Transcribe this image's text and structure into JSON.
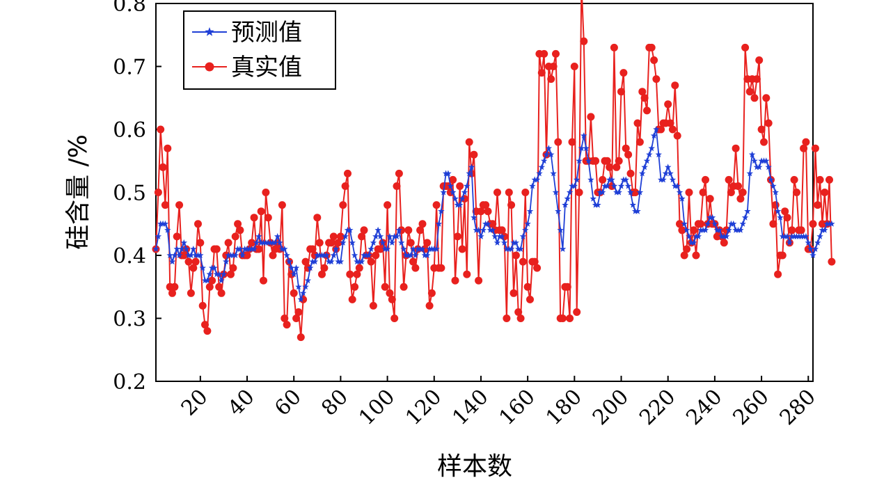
{
  "chart_data": {
    "type": "line",
    "xlabel": "样本数",
    "ylabel": "硅含量 /%",
    "xlim": [
      1,
      282
    ],
    "ylim": [
      0.2,
      0.8
    ],
    "x_ticks": [
      20,
      40,
      60,
      80,
      100,
      120,
      140,
      160,
      180,
      200,
      220,
      240,
      260,
      280
    ],
    "y_ticks": [
      0.2,
      0.3,
      0.4,
      0.5,
      0.6,
      0.7,
      0.8
    ],
    "x_tick_labels": [
      "20",
      "40",
      "60",
      "80",
      "100",
      "120",
      "140",
      "160",
      "180",
      "200",
      "220",
      "240",
      "260",
      "280"
    ],
    "y_tick_labels": [
      "0.2",
      "0.3",
      "0.4",
      "0.5",
      "0.6",
      "0.7",
      "0.8"
    ],
    "grid": false,
    "legend_position": "top-left",
    "series": [
      {
        "name": "预测值",
        "color": "#1f3fd6",
        "marker": "star",
        "values": [
          0.41,
          0.43,
          0.45,
          0.45,
          0.45,
          0.44,
          0.4,
          0.39,
          0.4,
          0.41,
          0.4,
          0.41,
          0.42,
          0.41,
          0.4,
          0.4,
          0.41,
          0.4,
          0.4,
          0.4,
          0.38,
          0.36,
          0.36,
          0.37,
          0.38,
          0.38,
          0.37,
          0.37,
          0.36,
          0.37,
          0.39,
          0.4,
          0.4,
          0.4,
          0.4,
          0.41,
          0.41,
          0.4,
          0.41,
          0.41,
          0.41,
          0.41,
          0.41,
          0.42,
          0.43,
          0.42,
          0.42,
          0.42,
          0.42,
          0.42,
          0.42,
          0.42,
          0.43,
          0.42,
          0.41,
          0.41,
          0.4,
          0.39,
          0.38,
          0.37,
          0.38,
          0.35,
          0.33,
          0.34,
          0.35,
          0.36,
          0.38,
          0.39,
          0.39,
          0.4,
          0.4,
          0.4,
          0.4,
          0.4,
          0.39,
          0.39,
          0.4,
          0.41,
          0.39,
          0.39,
          0.42,
          0.43,
          0.44,
          0.44,
          0.42,
          0.4,
          0.39,
          0.39,
          0.39,
          0.4,
          0.4,
          0.4,
          0.41,
          0.42,
          0.43,
          0.44,
          0.43,
          0.42,
          0.41,
          0.41,
          0.43,
          0.42,
          0.43,
          0.43,
          0.44,
          0.42,
          0.41,
          0.4,
          0.4,
          0.4,
          0.41,
          0.4,
          0.41,
          0.41,
          0.41,
          0.4,
          0.4,
          0.41,
          0.41,
          0.41,
          0.41,
          0.45,
          0.47,
          0.5,
          0.53,
          0.53,
          0.51,
          0.5,
          0.49,
          0.48,
          0.48,
          0.49,
          0.5,
          0.51,
          0.53,
          0.54,
          0.46,
          0.44,
          0.44,
          0.43,
          0.44,
          0.45,
          0.45,
          0.44,
          0.44,
          0.43,
          0.42,
          0.43,
          0.43,
          0.42,
          0.41,
          0.41,
          0.41,
          0.42,
          0.42,
          0.41,
          0.41,
          0.43,
          0.44,
          0.45,
          0.47,
          0.51,
          0.52,
          0.52,
          0.53,
          0.54,
          0.55,
          0.56,
          0.57,
          0.56,
          0.53,
          0.5,
          0.47,
          0.44,
          0.41,
          0.48,
          0.49,
          0.5,
          0.51,
          0.51,
          0.52,
          0.55,
          0.57,
          0.59,
          0.57,
          0.55,
          0.52,
          0.49,
          0.48,
          0.48,
          0.5,
          0.5,
          0.51,
          0.51,
          0.52,
          0.52,
          0.51,
          0.5,
          0.5,
          0.51,
          0.52,
          0.52,
          0.51,
          0.5,
          0.48,
          0.47,
          0.47,
          0.5,
          0.53,
          0.54,
          0.55,
          0.56,
          0.57,
          0.59,
          0.6,
          0.56,
          0.52,
          0.52,
          0.53,
          0.54,
          0.53,
          0.52,
          0.51,
          0.51,
          0.5,
          0.49,
          0.45,
          0.44,
          0.43,
          0.42,
          0.42,
          0.43,
          0.43,
          0.44,
          0.44,
          0.44,
          0.45,
          0.46,
          0.46,
          0.45,
          0.44,
          0.44,
          0.43,
          0.43,
          0.43,
          0.44,
          0.45,
          0.45,
          0.44,
          0.44,
          0.44,
          0.45,
          0.46,
          0.47,
          0.53,
          0.56,
          0.55,
          0.54,
          0.54,
          0.55,
          0.55,
          0.55,
          0.54,
          0.52,
          0.51,
          0.5,
          0.47,
          0.46,
          0.43,
          0.43,
          0.43,
          0.42,
          0.43,
          0.43,
          0.43,
          0.43,
          0.43,
          0.43,
          0.43,
          0.42,
          0.41,
          0.4,
          0.41,
          0.42,
          0.43,
          0.44,
          0.44,
          0.45,
          0.45,
          0.45
        ]
      },
      {
        "name": "真实值",
        "color": "#e8211e",
        "marker": "circle",
        "values": [
          0.41,
          0.5,
          0.6,
          0.54,
          0.48,
          0.57,
          0.35,
          0.34,
          0.35,
          0.43,
          0.48,
          0.4,
          0.4,
          0.41,
          0.39,
          0.34,
          0.38,
          0.39,
          0.45,
          0.42,
          0.32,
          0.29,
          0.28,
          0.35,
          0.36,
          0.41,
          0.41,
          0.35,
          0.34,
          0.37,
          0.4,
          0.42,
          0.37,
          0.38,
          0.43,
          0.45,
          0.44,
          0.4,
          0.4,
          0.4,
          0.41,
          0.42,
          0.46,
          0.41,
          0.41,
          0.47,
          0.36,
          0.5,
          0.46,
          0.42,
          0.4,
          0.41,
          0.42,
          0.41,
          0.48,
          0.3,
          0.29,
          0.39,
          0.37,
          0.34,
          0.3,
          0.31,
          0.27,
          0.33,
          0.39,
          0.38,
          0.41,
          0.41,
          0.4,
          0.46,
          0.42,
          0.37,
          0.38,
          0.4,
          0.42,
          0.42,
          0.43,
          0.41,
          0.42,
          0.43,
          0.48,
          0.51,
          0.53,
          0.37,
          0.33,
          0.35,
          0.37,
          0.38,
          0.43,
          0.44,
          0.4,
          0.4,
          0.39,
          0.32,
          0.4,
          0.41,
          0.41,
          0.42,
          0.35,
          0.48,
          0.34,
          0.33,
          0.3,
          0.51,
          0.53,
          0.44,
          0.35,
          0.4,
          0.44,
          0.42,
          0.39,
          0.38,
          0.41,
          0.44,
          0.45,
          0.41,
          0.42,
          0.32,
          0.34,
          0.38,
          0.48,
          0.38,
          0.38,
          0.51,
          0.51,
          0.51,
          0.5,
          0.52,
          0.36,
          0.43,
          0.51,
          0.41,
          0.49,
          0.37,
          0.58,
          0.53,
          0.56,
          0.47,
          0.36,
          0.47,
          0.48,
          0.48,
          0.47,
          0.45,
          0.45,
          0.44,
          0.5,
          0.44,
          0.44,
          0.43,
          0.3,
          0.5,
          0.48,
          0.34,
          0.4,
          0.31,
          0.3,
          0.39,
          0.5,
          0.35,
          0.33,
          0.39,
          0.39,
          0.38,
          0.72,
          0.69,
          0.72,
          0.56,
          0.7,
          0.68,
          0.7,
          0.72,
          0.58,
          0.3,
          0.3,
          0.35,
          0.35,
          0.3,
          0.58,
          0.7,
          0.31,
          0.5,
          0.83,
          0.74,
          0.55,
          0.55,
          0.62,
          0.55,
          0.55,
          0.5,
          0.5,
          0.52,
          0.55,
          0.55,
          0.54,
          0.51,
          0.73,
          0.54,
          0.55,
          0.66,
          0.69,
          0.57,
          0.56,
          0.53,
          0.5,
          0.5,
          0.61,
          0.58,
          0.66,
          0.65,
          0.63,
          0.73,
          0.73,
          0.71,
          0.68,
          0.6,
          0.6,
          0.61,
          0.61,
          0.64,
          0.61,
          0.6,
          0.67,
          0.59,
          0.45,
          0.44,
          0.4,
          0.41,
          0.5,
          0.42,
          0.44,
          0.4,
          0.45,
          0.45,
          0.5,
          0.52,
          0.45,
          0.49,
          0.45,
          0.45,
          0.43,
          0.44,
          0.43,
          0.42,
          0.44,
          0.52,
          0.5,
          0.51,
          0.57,
          0.51,
          0.49,
          0.5,
          0.73,
          0.68,
          0.66,
          0.68,
          0.65,
          0.68,
          0.71,
          0.6,
          0.58,
          0.65,
          0.61,
          0.52,
          0.45,
          0.48,
          0.37,
          0.4,
          0.4,
          0.47,
          0.46,
          0.42,
          0.44,
          0.52,
          0.5,
          0.44,
          0.44,
          0.57,
          0.58,
          0.41,
          0.41,
          0.45,
          0.57,
          0.48,
          0.52,
          0.45,
          0.5,
          0.45,
          0.52,
          0.39
        ]
      }
    ]
  }
}
